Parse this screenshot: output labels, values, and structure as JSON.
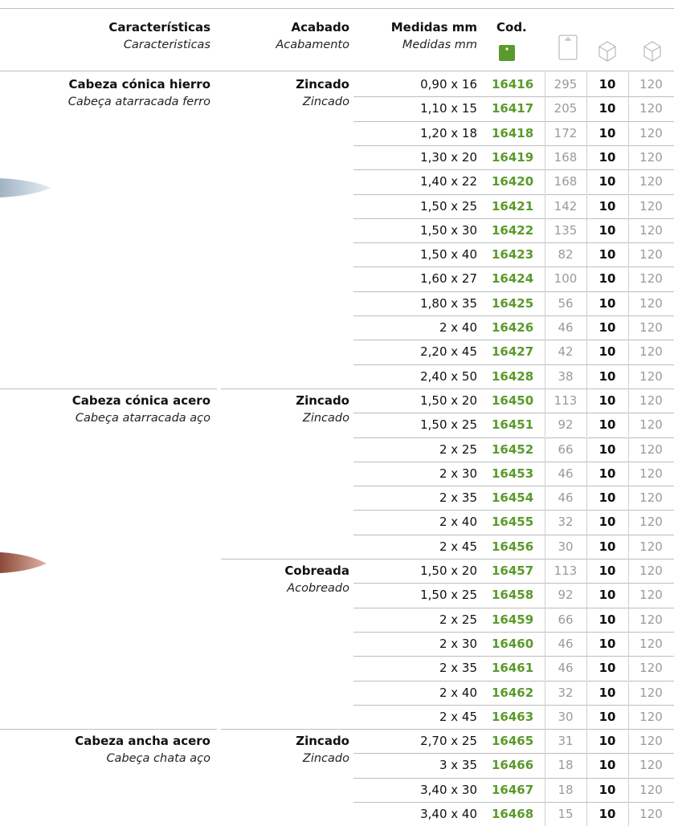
{
  "header": {
    "caracteristicas": "Características",
    "caracteristicas_pt": "Caracteristicas",
    "acabado": "Acabado",
    "acabado_pt": "Acabamento",
    "medidas": "Medidas mm",
    "medidas_pt": "Medidas mm",
    "cod": "Cod."
  },
  "groups": [
    {
      "name": "Cabeza cónica hierro",
      "name_pt": "Cabeça atarracada ferro",
      "finishes": [
        {
          "name": "Zincado",
          "name_pt": "Zincado",
          "rows": [
            [
              "0,90 x 16",
              16416,
              295,
              10,
              120
            ],
            [
              "1,10 x 15",
              16417,
              205,
              10,
              120
            ],
            [
              "1,20 x 18",
              16418,
              172,
              10,
              120
            ],
            [
              "1,30 x 20",
              16419,
              168,
              10,
              120
            ],
            [
              "1,40 x 22",
              16420,
              168,
              10,
              120
            ],
            [
              "1,50 x 25",
              16421,
              142,
              10,
              120
            ],
            [
              "1,50 x 30",
              16422,
              135,
              10,
              120
            ],
            [
              "1,50 x 40",
              16423,
              82,
              10,
              120
            ],
            [
              "1,60 x 27",
              16424,
              100,
              10,
              120
            ],
            [
              "1,80 x 35",
              16425,
              56,
              10,
              120
            ],
            [
              "2 x 40",
              16426,
              46,
              10,
              120
            ],
            [
              "2,20 x 45",
              16427,
              42,
              10,
              120
            ],
            [
              "2,40 x 50",
              16428,
              38,
              10,
              120
            ]
          ]
        }
      ]
    },
    {
      "name": "Cabeza cónica acero",
      "name_pt": "Cabeça atarracada aço",
      "finishes": [
        {
          "name": "Zincado",
          "name_pt": "Zincado",
          "rows": [
            [
              "1,50 x 20",
              16450,
              113,
              10,
              120
            ],
            [
              "1,50 x 25",
              16451,
              92,
              10,
              120
            ],
            [
              "2 x 25",
              16452,
              66,
              10,
              120
            ],
            [
              "2 x 30",
              16453,
              46,
              10,
              120
            ],
            [
              "2 x 35",
              16454,
              46,
              10,
              120
            ],
            [
              "2 x 40",
              16455,
              32,
              10,
              120
            ],
            [
              "2 x 45",
              16456,
              30,
              10,
              120
            ]
          ]
        },
        {
          "name": "Cobreada",
          "name_pt": "Acobreado",
          "rows": [
            [
              "1,50 x 20",
              16457,
              113,
              10,
              120
            ],
            [
              "1,50 x 25",
              16458,
              92,
              10,
              120
            ],
            [
              "2 x 25",
              16459,
              66,
              10,
              120
            ],
            [
              "2 x 30",
              16460,
              46,
              10,
              120
            ],
            [
              "2 x 35",
              16461,
              46,
              10,
              120
            ],
            [
              "2 x 40",
              16462,
              32,
              10,
              120
            ],
            [
              "2 x 45",
              16463,
              30,
              10,
              120
            ]
          ]
        }
      ]
    },
    {
      "name": "Cabeza ancha acero",
      "name_pt": "Cabeça chata aço",
      "finishes": [
        {
          "name": "Zincado",
          "name_pt": "Zincado",
          "rows": [
            [
              "2,70 x 25",
              16465,
              31,
              10,
              120
            ],
            [
              "3 x 35",
              16466,
              18,
              10,
              120
            ],
            [
              "3,40 x 30",
              16467,
              18,
              10,
              120
            ],
            [
              "3,40 x 40",
              16468,
              15,
              10,
              120
            ]
          ]
        }
      ]
    }
  ]
}
